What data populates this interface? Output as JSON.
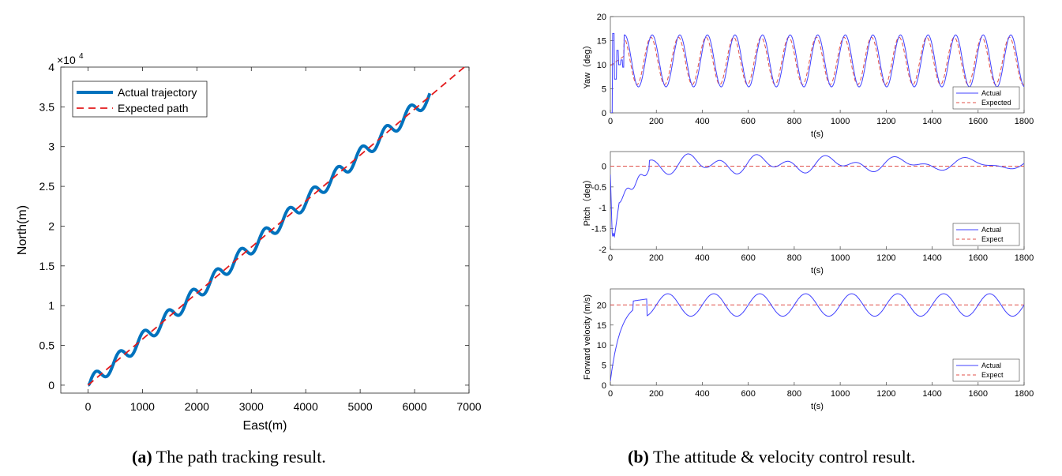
{
  "panel_a": {
    "caption_label": "(a)",
    "caption_text": "The path tracking result.",
    "chart_data": {
      "type": "line",
      "xlabel": "East(m)",
      "ylabel": "North(m)",
      "y_exponent": "×10",
      "y_exponent_power": "4",
      "xlim": [
        -500,
        7000
      ],
      "ylim": [
        -0.1,
        4
      ],
      "xticks": [
        0,
        1000,
        2000,
        3000,
        4000,
        5000,
        6000,
        7000
      ],
      "xtick_labels": [
        "0",
        "1000",
        "2000",
        "3000",
        "4000",
        "5000",
        "6000",
        "7000"
      ],
      "yticks": [
        0,
        0.5,
        1,
        1.5,
        2,
        2.5,
        3,
        3.5,
        4
      ],
      "ytick_labels": [
        "0",
        "0.5",
        "1",
        "1.5",
        "2",
        "2.5",
        "3",
        "3.5",
        "4"
      ],
      "legend": [
        "Actual trajectory",
        "Expected path"
      ],
      "colors": {
        "actual": "#0072bd",
        "expected": "#e31a1c"
      },
      "expected_path": {
        "x": [
          0,
          7000
        ],
        "y": [
          0,
          4.05
        ]
      },
      "actual_trajectory": {
        "x_start": 0,
        "x_end": 6280,
        "wiggle_period_m": 445,
        "wiggle_amplitude": 0.09
      }
    }
  },
  "panel_b": {
    "caption_label": "(b)",
    "caption_text": "The attitude & velocity control result.",
    "chart_data": [
      {
        "type": "line",
        "title": "Yaw",
        "xlabel": "t(s)",
        "ylabel": "Yaw（deg）",
        "xlim": [
          0,
          1800
        ],
        "ylim": [
          0,
          20
        ],
        "xtick_labels": [
          "0",
          "200",
          "400",
          "600",
          "800",
          "1000",
          "1200",
          "1400",
          "1600",
          "1800"
        ],
        "yticks": [
          0,
          5,
          10,
          15,
          20
        ],
        "ytick_labels": [
          "0",
          "5",
          "10",
          "15",
          "20"
        ],
        "legend": [
          "Actual",
          "Expected"
        ],
        "colors": {
          "actual": "#4040ff",
          "expected": "#e0504a"
        },
        "series": [
          {
            "name": "Actual",
            "center": 10.8,
            "amplitude": 5.4,
            "period_s": 120,
            "transient": true
          },
          {
            "name": "Expected",
            "center": 10.8,
            "amplitude": 4.9,
            "period_s": 120
          }
        ]
      },
      {
        "type": "line",
        "title": "Pitch",
        "xlabel": "t(s)",
        "ylabel": "Pitch（deg）",
        "xlim": [
          0,
          1800
        ],
        "ylim": [
          -2,
          0.35
        ],
        "xtick_labels": [
          "0",
          "200",
          "400",
          "600",
          "800",
          "1000",
          "1200",
          "1400",
          "1600",
          "1800"
        ],
        "yticks": [
          -2,
          -1.5,
          -1,
          -0.5,
          0
        ],
        "ytick_labels": [
          "-2",
          "-1.5",
          "-1",
          "-0.5",
          "0"
        ],
        "legend": [
          "Actual",
          "Expect"
        ],
        "colors": {
          "actual": "#4040ff",
          "expected": "#e0504a"
        },
        "series": [
          {
            "name": "Actual",
            "min": -1.7,
            "steady_amplitude": 0.25
          },
          {
            "name": "Expect",
            "value": 0
          }
        ]
      },
      {
        "type": "line",
        "title": "Forward velocity",
        "xlabel": "t(s)",
        "ylabel": "Forward velocity (m/s)",
        "xlim": [
          0,
          1800
        ],
        "ylim": [
          0,
          24
        ],
        "xtick_labels": [
          "0",
          "200",
          "400",
          "600",
          "800",
          "1000",
          "1200",
          "1400",
          "1600",
          "1800"
        ],
        "yticks": [
          0,
          5,
          10,
          15,
          20
        ],
        "ytick_labels": [
          "0",
          "5",
          "10",
          "15",
          "20"
        ],
        "legend": [
          "Actual",
          "Expect"
        ],
        "colors": {
          "actual": "#4040ff",
          "expected": "#e0504a"
        },
        "series": [
          {
            "name": "Actual",
            "center": 20,
            "amplitude": 2.8,
            "period_s": 200
          },
          {
            "name": "Expect",
            "value": 20
          }
        ]
      }
    ]
  }
}
